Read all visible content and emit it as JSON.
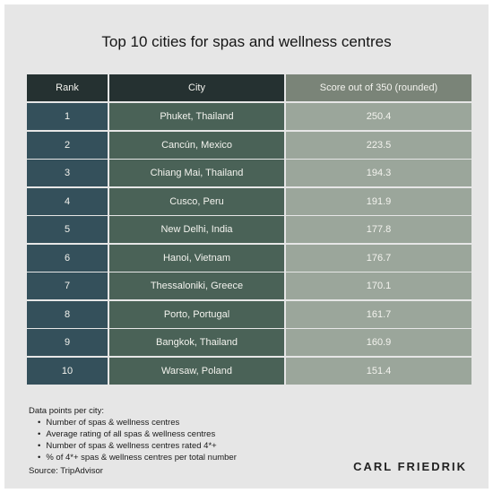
{
  "chart_data": {
    "type": "table",
    "title": "Top 10 cities for spas and wellness centres",
    "columns": [
      "Rank",
      "City",
      "Score out of 350 (rounded)"
    ],
    "rows": [
      {
        "rank": "1",
        "city": "Phuket, Thailand",
        "score": "250.4"
      },
      {
        "rank": "2",
        "city": "Cancún, Mexico",
        "score": "223.5"
      },
      {
        "rank": "3",
        "city": "Chiang Mai, Thailand",
        "score": "194.3"
      },
      {
        "rank": "4",
        "city": "Cusco, Peru",
        "score": "191.9"
      },
      {
        "rank": "5",
        "city": "New Delhi, India",
        "score": "177.8"
      },
      {
        "rank": "6",
        "city": "Hanoi, Vietnam",
        "score": "176.7"
      },
      {
        "rank": "7",
        "city": "Thessaloniki, Greece",
        "score": "170.1"
      },
      {
        "rank": "8",
        "city": "Porto, Portugal",
        "score": "161.7"
      },
      {
        "rank": "9",
        "city": "Bangkok, Thailand",
        "score": "160.9"
      },
      {
        "rank": "10",
        "city": "Warsaw, Poland",
        "score": "151.4"
      }
    ]
  },
  "notes": {
    "heading": "Data points per city:",
    "items": [
      "Number of spas & wellness centres",
      "Average rating of all spas & wellness centres",
      "Number of spas & wellness centres rated 4*+",
      "% of 4*+ spas & wellness centres per total number"
    ],
    "source": "Source: TripAdvisor"
  },
  "brand": "CARL FRIEDRIK",
  "colors": {
    "background": "#e6e6e6",
    "header_dark": "#253131",
    "header_score": "#7a8478",
    "rank_cell": "#34505b",
    "city_cell": "#4a6257",
    "score_cell": "#9ba69b"
  }
}
